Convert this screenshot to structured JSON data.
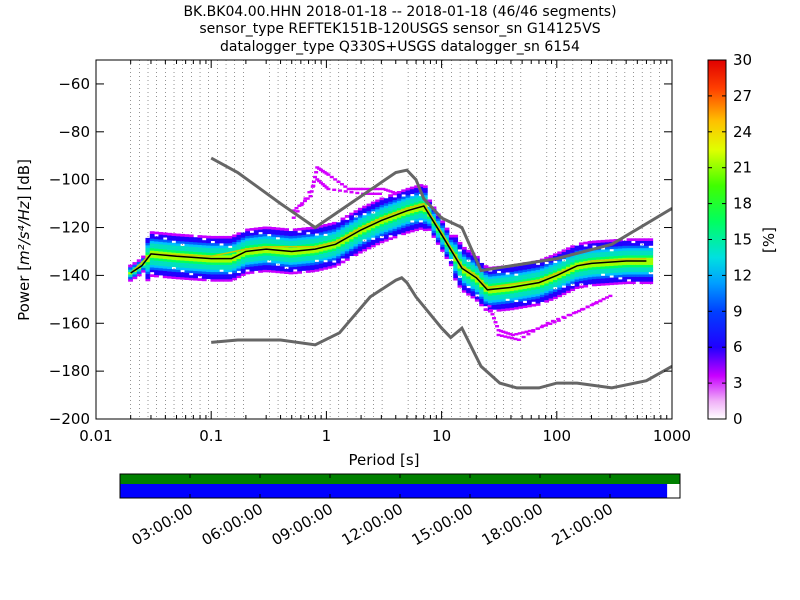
{
  "header": {
    "title_line1": "BK.BK04.00.HHN   2018-01-18 -- 2018-01-18  (46/46 segments)",
    "title_line2": "sensor_type REFTEK151B-120USGS sensor_sn G14125VS",
    "title_line3": "datalogger_type Q330S+USGS datalogger_sn 6154"
  },
  "chart_data": {
    "type": "heatmap",
    "xlabel": "Period [s]",
    "ylabel_prefix": "Power [",
    "ylabel_unit": "m²/s⁴/Hz",
    "ylabel_suffix": "] [dB]",
    "x_scale": "log",
    "xlim": [
      0.01,
      1000
    ],
    "ylim": [
      -200,
      -50
    ],
    "x_ticks": [
      0.01,
      0.1,
      1,
      10,
      100,
      1000
    ],
    "x_tick_labels": [
      "0.01",
      "0.1",
      "1",
      "10",
      "100",
      "1000"
    ],
    "y_ticks": [
      -200,
      -180,
      -160,
      -140,
      -120,
      -100,
      -80,
      -60
    ],
    "y_tick_labels": [
      "−200",
      "−180",
      "−160",
      "−140",
      "−120",
      "−100",
      "−80",
      "−60"
    ],
    "grid": "dotted vertical at period bins",
    "colorbar": {
      "label": "[%]",
      "range": [
        0,
        30
      ],
      "ticks": [
        0,
        3,
        6,
        9,
        12,
        15,
        18,
        21,
        24,
        27,
        30
      ],
      "tick_labels": [
        "0",
        "3",
        "6",
        "9",
        "12",
        "15",
        "18",
        "21",
        "24",
        "27",
        "30"
      ],
      "colormap": "pqlx"
    },
    "high_noise_model": {
      "color": "#666666",
      "points": [
        [
          0.1,
          -91
        ],
        [
          0.17,
          -97
        ],
        [
          0.4,
          -110
        ],
        [
          0.8,
          -120
        ],
        [
          4,
          -97
        ],
        [
          5,
          -96
        ],
        [
          6,
          -100
        ],
        [
          7,
          -108
        ],
        [
          10,
          -116
        ],
        [
          15,
          -120
        ],
        [
          22,
          -138
        ],
        [
          100,
          -133
        ],
        [
          300,
          -127
        ],
        [
          1000,
          -112
        ]
      ]
    },
    "low_noise_model": {
      "color": "#666666",
      "points": [
        [
          0.1,
          -168
        ],
        [
          0.17,
          -167
        ],
        [
          0.4,
          -167
        ],
        [
          0.8,
          -169
        ],
        [
          1.3,
          -164
        ],
        [
          2.4,
          -149
        ],
        [
          4,
          -142
        ],
        [
          4.5,
          -141
        ],
        [
          5,
          -143
        ],
        [
          6,
          -149
        ],
        [
          10,
          -162
        ],
        [
          12,
          -166
        ],
        [
          15,
          -162
        ],
        [
          22,
          -178
        ],
        [
          32,
          -185
        ],
        [
          45,
          -187
        ],
        [
          70,
          -187
        ],
        [
          100,
          -185
        ],
        [
          150,
          -185
        ],
        [
          300,
          -187
        ],
        [
          600,
          -184
        ],
        [
          1000,
          -178
        ]
      ]
    },
    "mode_curve": {
      "color": "#000000",
      "points": [
        [
          0.02,
          -139
        ],
        [
          0.025,
          -136
        ],
        [
          0.03,
          -131
        ],
        [
          0.05,
          -132
        ],
        [
          0.1,
          -133
        ],
        [
          0.15,
          -133
        ],
        [
          0.2,
          -130
        ],
        [
          0.3,
          -129
        ],
        [
          0.5,
          -130
        ],
        [
          0.8,
          -129
        ],
        [
          1.2,
          -127
        ],
        [
          2,
          -121
        ],
        [
          3,
          -117
        ],
        [
          5,
          -113
        ],
        [
          7,
          -111
        ],
        [
          10,
          -123
        ],
        [
          15,
          -137
        ],
        [
          20,
          -141
        ],
        [
          25,
          -146
        ],
        [
          40,
          -145
        ],
        [
          70,
          -143
        ],
        [
          100,
          -140
        ],
        [
          150,
          -136
        ],
        [
          200,
          -135
        ],
        [
          400,
          -134
        ],
        [
          600,
          -134
        ]
      ]
    },
    "mean_curve": {
      "color": "#c8c800",
      "points": [
        [
          0.02,
          -139
        ],
        [
          0.03,
          -131
        ],
        [
          0.1,
          -132
        ],
        [
          0.2,
          -129
        ],
        [
          0.3,
          -128
        ],
        [
          0.8,
          -128
        ],
        [
          1.2,
          -126
        ],
        [
          2,
          -120
        ],
        [
          3,
          -116
        ],
        [
          5,
          -112
        ],
        [
          7,
          -110
        ],
        [
          10,
          -122
        ],
        [
          15,
          -136
        ],
        [
          20,
          -140
        ],
        [
          25,
          -145
        ],
        [
          70,
          -142
        ],
        [
          100,
          -139
        ],
        [
          200,
          -134
        ],
        [
          600,
          -133
        ]
      ]
    },
    "outlier_traces": [
      {
        "color": "#d400ff",
        "points": [
          [
            0.5,
            -113
          ],
          [
            0.7,
            -107
          ],
          [
            0.8,
            -95
          ],
          [
            1,
            -98
          ],
          [
            1.5,
            -104
          ],
          [
            2,
            -104
          ],
          [
            3,
            -104
          ],
          [
            4,
            -106
          ]
        ]
      },
      {
        "color": "#d400ff",
        "points": [
          [
            0.5,
            -116
          ],
          [
            0.8,
            -100
          ],
          [
            1,
            -104
          ],
          [
            2,
            -106
          ],
          [
            3,
            -106
          ]
        ]
      },
      {
        "color": "#d400ff",
        "points": [
          [
            25,
            -153
          ],
          [
            30,
            -163
          ],
          [
            40,
            -165
          ],
          [
            60,
            -163
          ],
          [
            100,
            -159
          ],
          [
            200,
            -152
          ],
          [
            300,
            -148
          ]
        ]
      },
      {
        "color": "#d400ff",
        "points": [
          [
            30,
            -165
          ],
          [
            45,
            -167
          ],
          [
            80,
            -160
          ],
          [
            150,
            -155
          ],
          [
            250,
            -150
          ]
        ]
      }
    ],
    "timeline": {
      "tick_labels": [
        "03:00:00",
        "06:00:00",
        "09:00:00",
        "12:00:00",
        "15:00:00",
        "18:00:00",
        "21:00:00"
      ],
      "tick_hours": [
        3,
        6,
        9,
        12,
        15,
        18,
        21
      ],
      "total_hours": 24,
      "data_coverage_color": "#008000",
      "psd_coverage_color": "#0000ff",
      "psd_coverage_fraction": 0.977
    }
  }
}
